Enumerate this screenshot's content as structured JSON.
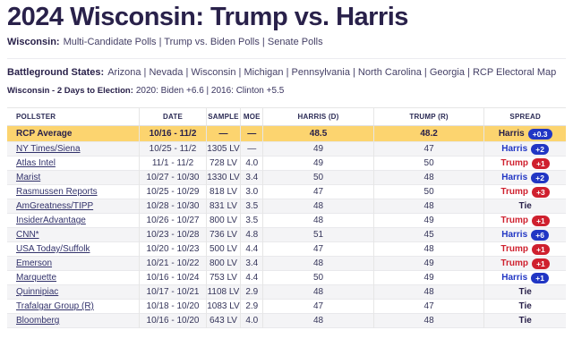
{
  "page": {
    "title": "2024 Wisconsin: Trump vs. Harris",
    "subnav": {
      "label": "Wisconsin:",
      "links": [
        "Multi-Candidate Polls",
        "Trump vs. Biden Polls",
        "Senate Polls"
      ]
    },
    "battleground": {
      "label": "Battleground States:",
      "links": [
        "Arizona",
        "Nevada",
        "Wisconsin",
        "Michigan",
        "Pennsylvania",
        "North Carolina",
        "Georgia",
        "RCP Electoral Map"
      ]
    },
    "context": {
      "label": "Wisconsin - 2 Days to Election:",
      "text": "2020: Biden +6.6 | 2016: Clinton +5.5"
    }
  },
  "colors": {
    "dem_blue": "#2136c4",
    "rep_red": "#cf202e",
    "average_row_yellow": "#fcd46f",
    "stripe_gray": "#f4f4f6",
    "heading_navy": "#29214a"
  },
  "table": {
    "headers": [
      "POLLSTER",
      "DATE",
      "SAMPLE",
      "MOE",
      "HARRIS (D)",
      "TRUMP (R)",
      "SPREAD"
    ],
    "average": {
      "pollster": "RCP Average",
      "date": "10/16 - 11/2",
      "sample": "—",
      "moe": "—",
      "harris": "48.5",
      "trump": "48.2",
      "spread": {
        "leader": "Harris",
        "margin": "+0.3",
        "party": "avg"
      }
    },
    "rows": [
      {
        "pollster": "NY Times/Siena",
        "date": "10/25 - 11/2",
        "sample": "1305 LV",
        "moe": "—",
        "harris": "49",
        "trump": "47",
        "spread": {
          "leader": "Harris",
          "margin": "+2",
          "party": "dem"
        }
      },
      {
        "pollster": "Atlas Intel",
        "date": "11/1 - 11/2",
        "sample": "728 LV",
        "moe": "4.0",
        "harris": "49",
        "trump": "50",
        "spread": {
          "leader": "Trump",
          "margin": "+1",
          "party": "rep"
        }
      },
      {
        "pollster": "Marist",
        "date": "10/27 - 10/30",
        "sample": "1330 LV",
        "moe": "3.4",
        "harris": "50",
        "trump": "48",
        "spread": {
          "leader": "Harris",
          "margin": "+2",
          "party": "dem"
        }
      },
      {
        "pollster": "Rasmussen Reports",
        "date": "10/25 - 10/29",
        "sample": "818 LV",
        "moe": "3.0",
        "harris": "47",
        "trump": "50",
        "spread": {
          "leader": "Trump",
          "margin": "+3",
          "party": "rep"
        }
      },
      {
        "pollster": "AmGreatness/TIPP",
        "date": "10/28 - 10/30",
        "sample": "831 LV",
        "moe": "3.5",
        "harris": "48",
        "trump": "48",
        "spread": {
          "leader": "Tie",
          "margin": "",
          "party": "tie"
        }
      },
      {
        "pollster": "InsiderAdvantage",
        "date": "10/26 - 10/27",
        "sample": "800 LV",
        "moe": "3.5",
        "harris": "48",
        "trump": "49",
        "spread": {
          "leader": "Trump",
          "margin": "+1",
          "party": "rep"
        }
      },
      {
        "pollster": "CNN*",
        "date": "10/23 - 10/28",
        "sample": "736 LV",
        "moe": "4.8",
        "harris": "51",
        "trump": "45",
        "spread": {
          "leader": "Harris",
          "margin": "+6",
          "party": "dem"
        }
      },
      {
        "pollster": "USA Today/Suffolk",
        "date": "10/20 - 10/23",
        "sample": "500 LV",
        "moe": "4.4",
        "harris": "47",
        "trump": "48",
        "spread": {
          "leader": "Trump",
          "margin": "+1",
          "party": "rep"
        }
      },
      {
        "pollster": "Emerson",
        "date": "10/21 - 10/22",
        "sample": "800 LV",
        "moe": "3.4",
        "harris": "48",
        "trump": "49",
        "spread": {
          "leader": "Trump",
          "margin": "+1",
          "party": "rep"
        }
      },
      {
        "pollster": "Marquette",
        "date": "10/16 - 10/24",
        "sample": "753 LV",
        "moe": "4.4",
        "harris": "50",
        "trump": "49",
        "spread": {
          "leader": "Harris",
          "margin": "+1",
          "party": "dem"
        }
      },
      {
        "pollster": "Quinnipiac",
        "date": "10/17 - 10/21",
        "sample": "1108 LV",
        "moe": "2.9",
        "harris": "48",
        "trump": "48",
        "spread": {
          "leader": "Tie",
          "margin": "",
          "party": "tie"
        }
      },
      {
        "pollster": "Trafalgar Group (R)",
        "date": "10/18 - 10/20",
        "sample": "1083 LV",
        "moe": "2.9",
        "harris": "47",
        "trump": "47",
        "spread": {
          "leader": "Tie",
          "margin": "",
          "party": "tie"
        }
      },
      {
        "pollster": "Bloomberg",
        "date": "10/16 - 10/20",
        "sample": "643 LV",
        "moe": "4.0",
        "harris": "48",
        "trump": "48",
        "spread": {
          "leader": "Tie",
          "margin": "",
          "party": "tie"
        }
      }
    ]
  }
}
